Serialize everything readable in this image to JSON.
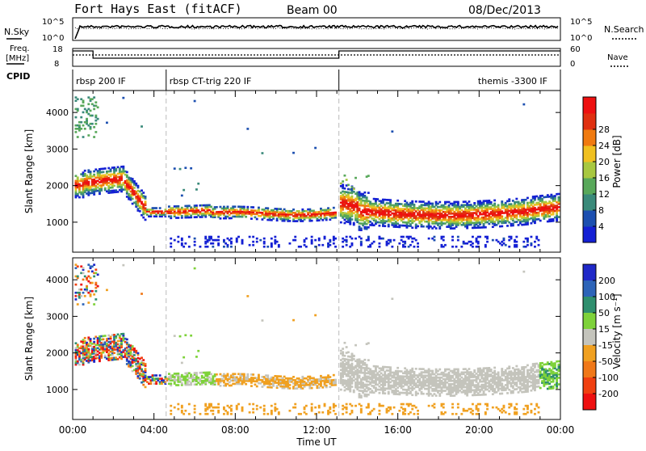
{
  "header": {
    "station": "Fort Hays East (fitACF)",
    "beam": "Beam 00",
    "date": "08/Dec/2013"
  },
  "noise_panel": {
    "left_label": "N.Sky",
    "right_label": "N.Search",
    "ticks": [
      "10^5",
      "10^0"
    ]
  },
  "freq_panel": {
    "left_label": "Freq.",
    "left_unit": "[MHz]",
    "left_ticks": [
      "18",
      "8"
    ],
    "right_label": "Nave",
    "right_ticks": [
      "60",
      "0"
    ]
  },
  "cpid": {
    "label": "CPID",
    "segments": [
      {
        "name": "rbsp 200 IF",
        "start_h": 0,
        "end_h": 4.6
      },
      {
        "name": "rbsp CT-trig 220 IF",
        "start_h": 4.6,
        "end_h": 13.1
      },
      {
        "name": "themis -3300 IF",
        "start_h": 13.1,
        "end_h": 24
      }
    ]
  },
  "chart_data": [
    {
      "type": "heatmap",
      "title": "",
      "xlabel": "Time UT",
      "ylabel": "Slant Range [km]",
      "x_ticks": [
        "00:00",
        "04:00",
        "08:00",
        "12:00",
        "16:00",
        "20:00",
        "00:00"
      ],
      "y_ticks": [
        "1000",
        "2000",
        "3000",
        "4000"
      ],
      "xlim_h": [
        0,
        24
      ],
      "ylim_km": [
        180,
        4600
      ],
      "colorbar": {
        "label": "Power [dB]",
        "ticks": [
          "4",
          "8",
          "12",
          "16",
          "20",
          "24",
          "28"
        ],
        "range": [
          0,
          30
        ],
        "colors": [
          "#1420d4",
          "#1c4fb0",
          "#3a8a7a",
          "#58a85a",
          "#a8c840",
          "#f0c020",
          "#f07a10",
          "#e03010",
          "#ee1010"
        ]
      }
    },
    {
      "type": "heatmap",
      "title": "",
      "xlabel": "Time UT",
      "ylabel": "Slant Range [km]",
      "x_ticks": [
        "00:00",
        "04:00",
        "08:00",
        "12:00",
        "16:00",
        "20:00",
        "00:00"
      ],
      "y_ticks": [
        "1000",
        "2000",
        "3000",
        "4000"
      ],
      "xlim_h": [
        0,
        24
      ],
      "ylim_km": [
        180,
        4600
      ],
      "colorbar": {
        "label": "Velocity [m s⁻¹]",
        "ticks": [
          "200",
          "100",
          "50",
          "15",
          "-15",
          "-50",
          "-100",
          "-200"
        ],
        "range": [
          -250,
          250
        ],
        "colors": [
          "#1f28c8",
          "#2d64b8",
          "#2f8f6e",
          "#7ed23a",
          "#c4c4bc",
          "#f0a020",
          "#f07818",
          "#f04010",
          "#ee1010"
        ]
      }
    }
  ],
  "xaxis": {
    "label": "Time UT"
  }
}
